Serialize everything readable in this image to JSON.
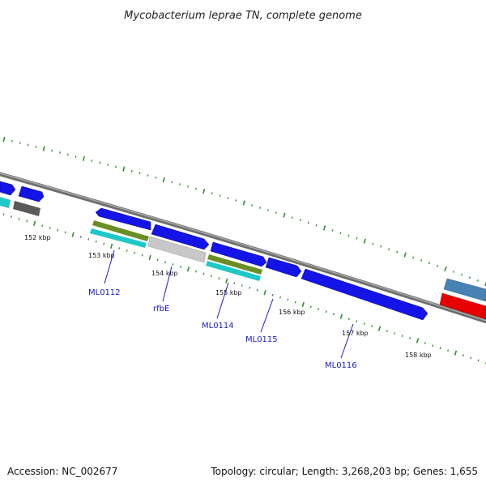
{
  "map": {
    "title": "Mycobacterium leprae TN, complete genome",
    "accession_text": "Accession: NC_002677",
    "summary_text": "Topology: circular; Length: 3,268,203 bp; Genes: 1,655"
  },
  "colors": {
    "backbone": "#808080",
    "tick": "#2e8b2e",
    "gene_forward": "#1414e6",
    "gene_reverse_gray": "#5a5a5a",
    "cds_cyan": "#1ec8c8",
    "cds_olive": "#6b8e23",
    "gene_light_gray": "#c8c8c8",
    "steel_blue": "#4682b4",
    "red": "#e60000",
    "label": "#1a1acc"
  },
  "ticks": {
    "labels": [
      "152 kbp",
      "153 kbp",
      "154 kbp",
      "155 kbp",
      "156 kbp",
      "157 kbp",
      "158 kbp"
    ]
  },
  "genes": {
    "labels": [
      "ML0112",
      "rfbE",
      "ML0114",
      "ML0115",
      "ML0116"
    ]
  }
}
